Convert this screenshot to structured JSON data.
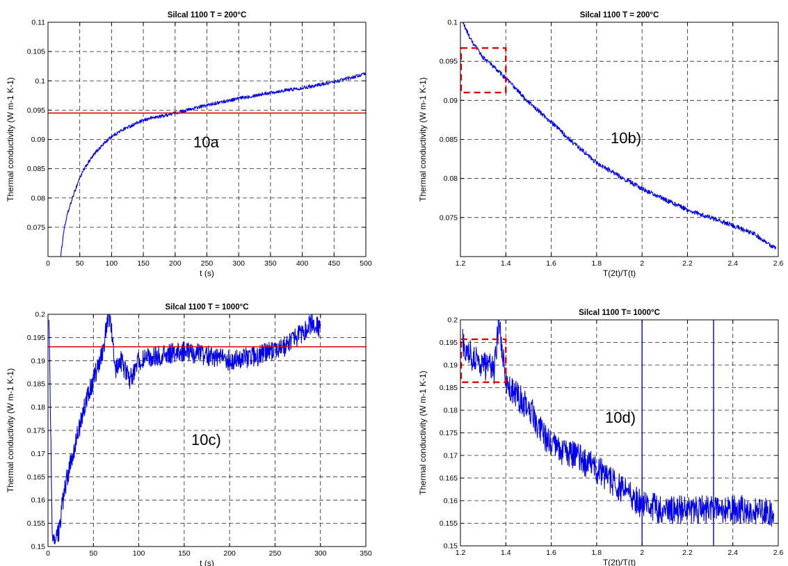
{
  "figure": {
    "panel_count": 4
  },
  "chart_data": [
    {
      "type": "line",
      "title": "Silcal 1100 T = 200°C",
      "xlabel": "t (s)",
      "ylabel": "Thermal conductivity (W m-1 K-1)",
      "xlim": [
        0,
        500
      ],
      "ylim": [
        0.07,
        0.11
      ],
      "x_ticks": [
        0,
        50,
        100,
        150,
        200,
        250,
        300,
        350,
        400,
        450,
        500
      ],
      "y_ticks": [
        0.075,
        0.08,
        0.085,
        0.09,
        0.095,
        0.1,
        0.105,
        0.11
      ],
      "grid": true,
      "annotation": "10a",
      "reference_line": {
        "y": 0.0945,
        "color": "#e00000"
      },
      "series_color": "#0000ee",
      "series": [
        {
          "noise": 0.0003,
          "x": [
            20,
            25,
            30,
            40,
            50,
            60,
            75,
            90,
            100,
            120,
            140,
            160,
            180,
            200,
            230,
            260,
            300,
            350,
            400,
            450,
            500
          ],
          "y": [
            0.07,
            0.0745,
            0.077,
            0.0805,
            0.0835,
            0.0855,
            0.0878,
            0.0895,
            0.0905,
            0.0918,
            0.0928,
            0.0936,
            0.094,
            0.0945,
            0.0953,
            0.0961,
            0.097,
            0.098,
            0.0988,
            0.0998,
            0.1012
          ]
        }
      ]
    },
    {
      "type": "line",
      "title": "Silcal 1100 T = 200°C",
      "xlabel": "T(2t)/T(t)",
      "ylabel": "Thermal conductivity (W m-1 K-1)",
      "xlim": [
        1.2,
        2.6
      ],
      "ylim": [
        0.07,
        0.1
      ],
      "x_ticks": [
        1.2,
        1.4,
        1.6,
        1.8,
        2,
        2.2,
        2.4,
        2.6
      ],
      "y_ticks": [
        0.075,
        0.08,
        0.085,
        0.09,
        0.095,
        0.1
      ],
      "grid": true,
      "annotation": "10b)",
      "highlight_box": {
        "x": [
          1.2,
          1.4
        ],
        "y": [
          0.091,
          0.0967
        ],
        "color": "#e00000"
      },
      "series_color": "#0000ee",
      "series": [
        {
          "noise": 0.0003,
          "x": [
            1.21,
            1.25,
            1.3,
            1.35,
            1.4,
            1.5,
            1.6,
            1.7,
            1.8,
            1.9,
            2.0,
            2.1,
            2.2,
            2.3,
            2.4,
            2.5,
            2.59
          ],
          "y": [
            0.1,
            0.0975,
            0.0955,
            0.0942,
            0.0928,
            0.0898,
            0.0872,
            0.0845,
            0.082,
            0.0803,
            0.0787,
            0.0773,
            0.076,
            0.075,
            0.074,
            0.0728,
            0.071
          ]
        }
      ]
    },
    {
      "type": "line",
      "title": "Silcal 1100 T = 1000°C",
      "xlabel": "t (s)",
      "ylabel": "Thermal conductivity (W m-1 K-1)",
      "xlim": [
        0,
        350
      ],
      "ylim": [
        0.15,
        0.2
      ],
      "x_ticks": [
        0,
        50,
        100,
        150,
        200,
        250,
        300,
        350
      ],
      "y_ticks": [
        0.15,
        0.155,
        0.16,
        0.165,
        0.17,
        0.175,
        0.18,
        0.185,
        0.19,
        0.195,
        0.2
      ],
      "grid": true,
      "annotation": "10c)",
      "reference_line": {
        "y": 0.193,
        "color": "#e00000"
      },
      "series_color": "#0000ee",
      "series": [
        {
          "noise": 0.0022,
          "x": [
            1,
            5,
            10,
            13,
            15,
            20,
            30,
            40,
            50,
            60,
            67,
            70,
            75,
            80,
            90,
            100,
            120,
            150,
            180,
            200,
            230,
            260,
            280,
            290,
            300
          ],
          "y": [
            0.2,
            0.15,
            0.152,
            0.154,
            0.158,
            0.164,
            0.172,
            0.18,
            0.186,
            0.192,
            0.2,
            0.197,
            0.188,
            0.19,
            0.186,
            0.19,
            0.191,
            0.192,
            0.191,
            0.19,
            0.191,
            0.193,
            0.196,
            0.198,
            0.197
          ]
        }
      ]
    },
    {
      "type": "line",
      "title": "Silcal 1100 T= 1000°C",
      "xlabel": "T(2t)/T(t)",
      "ylabel": "Thermal conductivity (W m-1 K-1)",
      "xlim": [
        1.2,
        2.6
      ],
      "ylim": [
        0.15,
        0.2
      ],
      "x_ticks": [
        1.2,
        1.4,
        1.6,
        1.8,
        2,
        2.2,
        2.4,
        2.6
      ],
      "y_ticks": [
        0.15,
        0.155,
        0.16,
        0.165,
        0.17,
        0.175,
        0.18,
        0.185,
        0.19,
        0.195,
        0.2
      ],
      "grid": true,
      "annotation": "10d)",
      "highlight_box": {
        "x": [
          1.2,
          1.4
        ],
        "y": [
          0.1862,
          0.1957
        ],
        "color": "#e00000"
      },
      "series_color": "#0000ee",
      "spikes": [
        {
          "x": 2.0,
          "y": [
            0.15,
            0.2
          ]
        },
        {
          "x": 2.315,
          "y": [
            0.15,
            0.2
          ]
        }
      ],
      "series": [
        {
          "noise": 0.0032,
          "x": [
            1.21,
            1.25,
            1.3,
            1.35,
            1.37,
            1.4,
            1.45,
            1.5,
            1.55,
            1.6,
            1.7,
            1.8,
            1.9,
            2.0,
            2.1,
            2.2,
            2.3,
            2.4,
            2.5,
            2.58
          ],
          "y": [
            0.195,
            0.192,
            0.19,
            0.189,
            0.2,
            0.186,
            0.183,
            0.181,
            0.176,
            0.172,
            0.17,
            0.167,
            0.163,
            0.159,
            0.158,
            0.158,
            0.158,
            0.158,
            0.158,
            0.157
          ]
        }
      ]
    }
  ]
}
